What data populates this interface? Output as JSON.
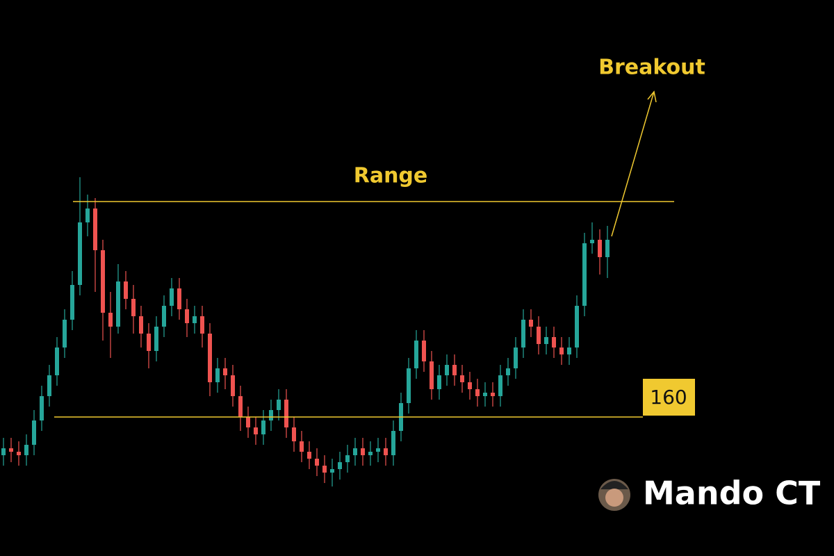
{
  "chart_data": {
    "type": "candlestick",
    "ylim": [
      140,
      220
    ],
    "up_color": "#26a69a",
    "down_color": "#ef5350",
    "line_color": "#f0c930",
    "range_high": 191,
    "range_label": "Range",
    "support": 160,
    "breakout_label": "Breakout",
    "watermark": "Mando CT",
    "open": [
      154.5,
      155.5,
      155,
      154.5,
      156,
      159.5,
      163,
      166,
      170,
      174,
      179,
      188,
      190,
      184,
      175,
      173,
      179.5,
      177,
      174.5,
      172,
      169.5,
      173,
      176,
      178.5,
      175.5,
      173.5,
      174.5,
      172,
      165,
      167,
      166,
      163,
      160,
      158.5,
      157.5,
      159.5,
      161,
      162.5,
      158.5,
      156.5,
      155,
      154,
      153,
      152,
      152.5,
      153.5,
      154.5,
      155.5,
      154.5,
      155,
      155.5,
      154.5,
      158,
      162,
      167,
      171,
      168,
      164,
      166,
      167.5,
      166,
      165,
      164,
      163,
      163.5,
      163,
      166,
      167,
      170,
      174,
      173,
      170.5,
      171.5,
      170,
      169,
      170,
      176,
      185,
      185.5,
      183
    ],
    "high": [
      157,
      157,
      156.5,
      157.5,
      161,
      164.5,
      167.5,
      171.5,
      175.5,
      181,
      194.5,
      192,
      191.5,
      185.5,
      178,
      182,
      181,
      179,
      176,
      173.5,
      174.5,
      177.5,
      180,
      180,
      177,
      176,
      176,
      173.5,
      168.5,
      168.5,
      167.5,
      164.5,
      161.5,
      160,
      161,
      162.5,
      164,
      164,
      160,
      158,
      156.5,
      155.5,
      154.5,
      154,
      155,
      156,
      157,
      157,
      156.5,
      157,
      157,
      159.5,
      163.5,
      168.5,
      172.5,
      172.5,
      169.5,
      167.5,
      169,
      169,
      167.5,
      166.5,
      165.5,
      165,
      165,
      167.5,
      168.5,
      171.5,
      175.5,
      175.5,
      174.5,
      173,
      173,
      171.5,
      171.5,
      177.5,
      186.5,
      188,
      187,
      187.5
    ],
    "low": [
      153,
      153.5,
      153,
      153,
      154.5,
      158,
      161.5,
      164.5,
      168.5,
      172.5,
      177.5,
      186,
      178,
      171,
      168.5,
      172,
      175.5,
      172,
      170,
      167,
      168,
      171.5,
      174.5,
      174,
      171.5,
      172,
      170,
      163,
      163.5,
      164,
      161.5,
      158,
      157,
      156,
      156,
      158,
      159.5,
      157,
      155,
      153.5,
      152.5,
      151.5,
      150.5,
      150,
      151,
      152,
      153,
      153,
      153,
      153.5,
      153,
      153,
      156.5,
      160.5,
      165.5,
      166.5,
      162.5,
      162.5,
      164.5,
      164.5,
      163.5,
      162.5,
      161.5,
      161.5,
      161.5,
      161.5,
      164.5,
      165.5,
      168.5,
      171.5,
      169,
      169,
      168.5,
      167.5,
      167.5,
      168.5,
      174.5,
      183.5,
      180.5,
      180
    ],
    "close": [
      155.5,
      155,
      154.5,
      156,
      159.5,
      163,
      166,
      170,
      174,
      179,
      188,
      190,
      184,
      175,
      173,
      179.5,
      177,
      174.5,
      172,
      169.5,
      173,
      176,
      178.5,
      175.5,
      173.5,
      174.5,
      172,
      165,
      167,
      166,
      163,
      160,
      158.5,
      157.5,
      159.5,
      161,
      162.5,
      158.5,
      156.5,
      155,
      154,
      153,
      152,
      152.5,
      153.5,
      154.5,
      155.5,
      154.5,
      155,
      155.5,
      154.5,
      158,
      162,
      167,
      171,
      168,
      164,
      166,
      167.5,
      166,
      165,
      164,
      163,
      163.5,
      163,
      166,
      167,
      170,
      174,
      173,
      170.5,
      171.5,
      170,
      169,
      170,
      176,
      185,
      185.5,
      183,
      185.5
    ]
  }
}
